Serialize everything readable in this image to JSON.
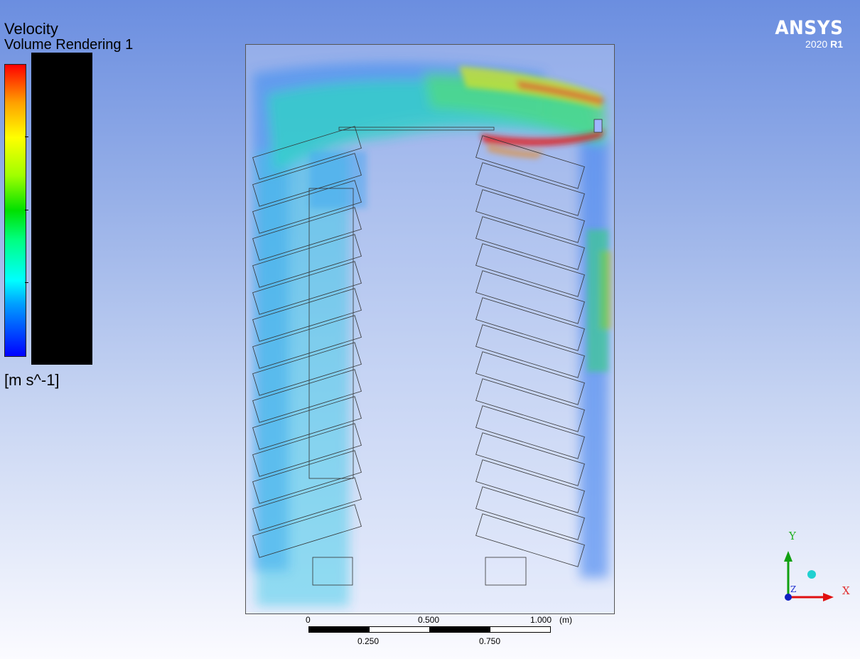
{
  "legend": {
    "title": "Velocity",
    "subtitle": "Volume Rendering 1",
    "units": "[m s^-1]",
    "colors": [
      "#0000ff",
      "#00ffff",
      "#00e000",
      "#ffff00",
      "#ff0000"
    ]
  },
  "logo": {
    "brand": "ANSYS",
    "version": "2020",
    "release": "R1"
  },
  "scale_bar": {
    "top_labels": [
      "0",
      "0.500",
      "1.000"
    ],
    "bottom_labels": [
      "0.250",
      "0.750"
    ],
    "unit": "(m)"
  },
  "axes": {
    "x": "X",
    "y": "Y",
    "z": "Z"
  }
}
